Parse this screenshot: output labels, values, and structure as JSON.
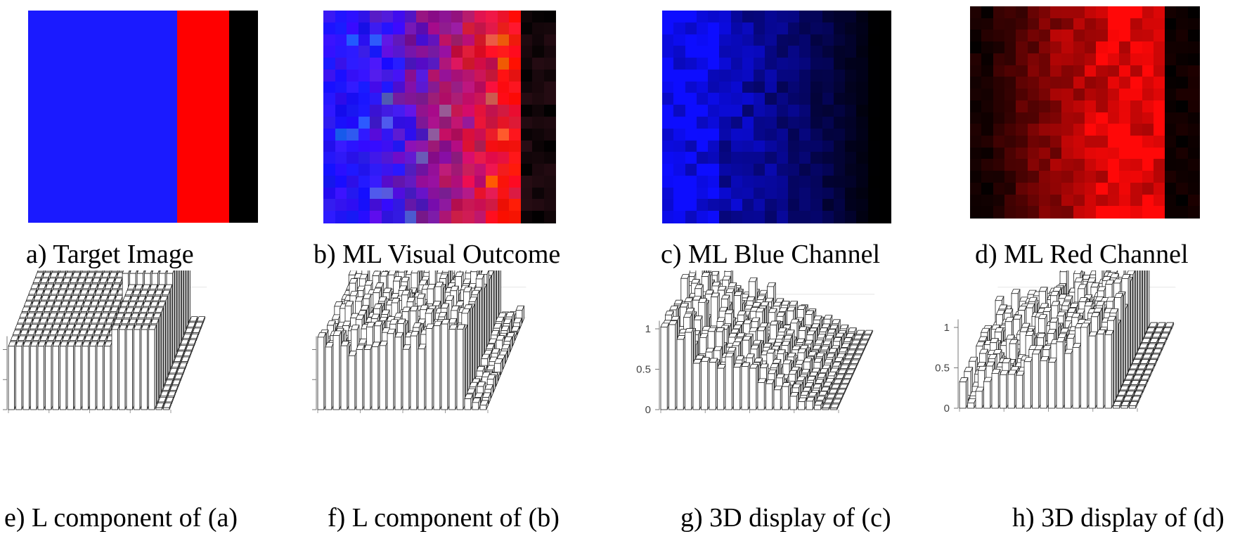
{
  "figure": {
    "top_row": [
      {
        "id": "a",
        "caption": "a) Target Image",
        "style": "target"
      },
      {
        "id": "b",
        "caption": "b) ML Visual Outcome",
        "style": "mixed"
      },
      {
        "id": "c",
        "caption": "c) ML Blue Channel",
        "style": "blue"
      },
      {
        "id": "d",
        "caption": "d) ML Red Channel",
        "style": "red"
      }
    ],
    "bottom_row": [
      {
        "id": "e",
        "caption": "e) L component of (a)",
        "ticks": []
      },
      {
        "id": "f",
        "caption": "f) L component of (b)",
        "ticks": []
      },
      {
        "id": "g",
        "caption": "g) 3D display of (c)",
        "ticks": [
          "0",
          "0.5",
          "1"
        ]
      },
      {
        "id": "h",
        "caption": "h) 3D display of (d)",
        "ticks": [
          "0",
          "0.5",
          "1"
        ]
      }
    ],
    "colors": {
      "blue": "#1a1aff",
      "red": "#ff0000",
      "black": "#000000",
      "bar_face": "#ffffff",
      "bar_side": "#d9d9d9",
      "bar_edge": "#222222"
    }
  }
}
